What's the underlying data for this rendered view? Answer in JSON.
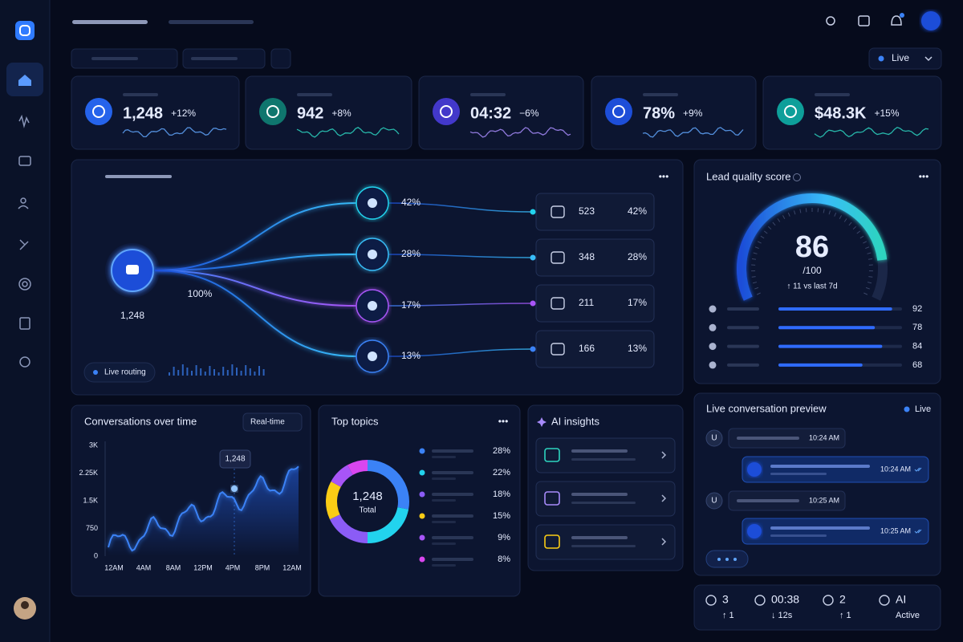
{
  "header": {
    "status": "Live"
  },
  "kpis": [
    {
      "value": "1,248",
      "change": "+12%"
    },
    {
      "value": "942",
      "change": "+8%"
    },
    {
      "value": "04:32",
      "change": "−6%"
    },
    {
      "value": "78%",
      "change": "+9%"
    },
    {
      "value": "$48.3K",
      "change": "+15%"
    }
  ],
  "routing": {
    "total": "1,248",
    "share": "100%",
    "status": "Live routing",
    "branches": [
      "42%",
      "28%",
      "17%",
      "13%"
    ],
    "outputs": [
      {
        "count": "523",
        "share": "42%"
      },
      {
        "count": "348",
        "share": "28%"
      },
      {
        "count": "211",
        "share": "17%"
      },
      {
        "count": "166",
        "share": "13%"
      }
    ]
  },
  "lead_quality": {
    "title": "Lead quality score",
    "score": 86,
    "scale": {
      "value": 100,
      "label": "/100"
    },
    "trend": "↑ 11 vs last 7d",
    "factors": [
      92,
      78,
      84,
      68
    ]
  },
  "conversations": {
    "title": "Conversations over time",
    "range": "Real-time",
    "yticks": [
      "3K",
      "2.25K",
      "1.5K",
      "750",
      "0"
    ],
    "xticks": [
      "12AM",
      "4AM",
      "8AM",
      "12PM",
      "4PM",
      "8PM",
      "12AM"
    ],
    "tooltip": "1,248"
  },
  "topics": {
    "title": "Top topics",
    "total": "1,248",
    "total_label": "Total",
    "values": [
      28,
      22,
      18,
      15,
      9,
      8
    ],
    "value_labels": [
      "28%",
      "22%",
      "18%",
      "15%",
      "9%",
      "8%"
    ],
    "colors": [
      "#3b82f6",
      "#22d3ee",
      "#8b5cf6",
      "#facc15",
      "#a855f7",
      "#d946ef"
    ]
  },
  "insights": {
    "title": "AI insights"
  },
  "preview": {
    "title": "Live conversation preview",
    "status": "Live",
    "messages": [
      {
        "author": "U",
        "time": "10:24 AM"
      },
      {
        "time": "10:24 AM"
      },
      {
        "author": "U",
        "time": "10:25 AM"
      },
      {
        "time": "10:25 AM"
      }
    ]
  },
  "stats": [
    {
      "value": "3",
      "change": "↑ 1"
    },
    {
      "value": "00:38",
      "change": "↓ 12s"
    },
    {
      "value": "2",
      "change": "↑ 1"
    },
    {
      "value": "AI",
      "change": "Active"
    }
  ]
}
